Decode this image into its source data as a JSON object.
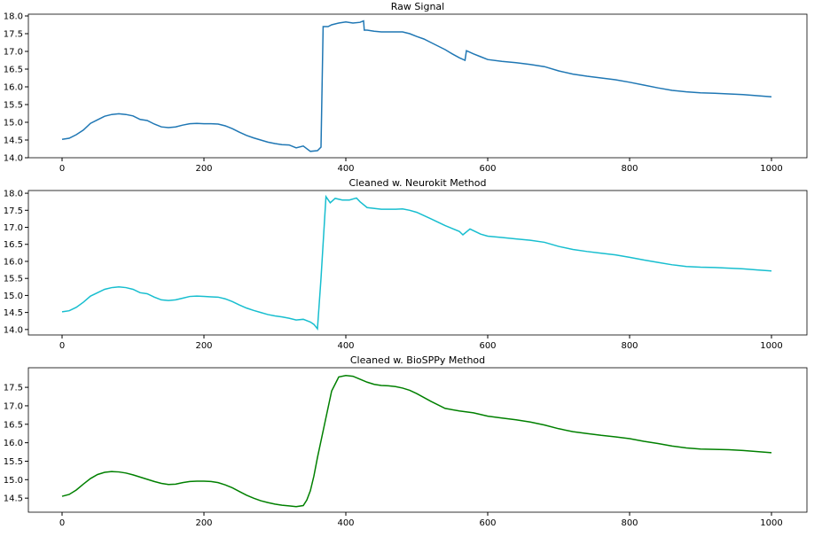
{
  "chart_data": [
    {
      "type": "line",
      "title": "Raw Signal",
      "color": "#1f77b4",
      "x": [
        0,
        10,
        20,
        30,
        40,
        50,
        60,
        70,
        80,
        90,
        100,
        110,
        120,
        130,
        140,
        150,
        160,
        170,
        180,
        190,
        200,
        210,
        220,
        230,
        240,
        250,
        260,
        270,
        280,
        290,
        300,
        310,
        320,
        330,
        340,
        350,
        360,
        365,
        368,
        375,
        380,
        390,
        400,
        410,
        420,
        425,
        426,
        430,
        440,
        450,
        460,
        470,
        480,
        490,
        500,
        510,
        520,
        530,
        540,
        550,
        560,
        568,
        570,
        580,
        590,
        600,
        620,
        640,
        660,
        680,
        700,
        720,
        740,
        760,
        780,
        800,
        820,
        840,
        860,
        880,
        900,
        920,
        940,
        960,
        980,
        1000
      ],
      "values": [
        14.52,
        14.55,
        14.65,
        14.78,
        14.97,
        15.07,
        15.17,
        15.22,
        15.24,
        15.22,
        15.18,
        15.08,
        15.05,
        14.95,
        14.87,
        14.85,
        14.87,
        14.92,
        14.96,
        14.97,
        14.96,
        14.96,
        14.95,
        14.9,
        14.82,
        14.72,
        14.63,
        14.56,
        14.5,
        14.44,
        14.4,
        14.37,
        14.36,
        14.28,
        14.33,
        14.18,
        14.2,
        14.3,
        17.7,
        17.7,
        17.75,
        17.8,
        17.83,
        17.8,
        17.82,
        17.86,
        17.6,
        17.6,
        17.57,
        17.55,
        17.55,
        17.55,
        17.55,
        17.5,
        17.42,
        17.35,
        17.25,
        17.15,
        17.05,
        16.93,
        16.82,
        16.75,
        17.02,
        16.93,
        16.85,
        16.77,
        16.72,
        16.68,
        16.63,
        16.57,
        16.45,
        16.36,
        16.3,
        16.25,
        16.2,
        16.13,
        16.05,
        15.97,
        15.9,
        15.86,
        15.83,
        15.82,
        15.8,
        15.78,
        15.75,
        15.72
      ],
      "xlim": [
        -47.5,
        1050
      ],
      "xticks": [
        0,
        200,
        400,
        600,
        800,
        1000
      ],
      "ylim": [
        14.0,
        18.05
      ],
      "yticks": [
        {
          "value": 14,
          "label": "14.0"
        },
        14.5,
        {
          "value": 15,
          "label": "15.0"
        },
        15.5,
        {
          "value": 16,
          "label": "16.0"
        },
        16.5,
        {
          "value": 17,
          "label": "17.0"
        },
        17.5,
        {
          "value": 18,
          "label": "18.0"
        }
      ]
    },
    {
      "type": "line",
      "title": "Cleaned w. Neurokit Method",
      "color": "#17becf",
      "x": [
        0,
        10,
        20,
        30,
        40,
        50,
        60,
        70,
        80,
        90,
        100,
        110,
        120,
        130,
        140,
        150,
        160,
        170,
        180,
        190,
        200,
        210,
        220,
        230,
        240,
        250,
        260,
        270,
        280,
        290,
        300,
        310,
        320,
        330,
        340,
        350,
        355,
        360,
        365,
        372,
        378,
        385,
        395,
        405,
        415,
        420,
        430,
        450,
        470,
        480,
        490,
        500,
        520,
        540,
        560,
        565,
        575,
        590,
        600,
        620,
        640,
        660,
        680,
        700,
        720,
        740,
        760,
        780,
        800,
        820,
        840,
        860,
        880,
        900,
        920,
        940,
        960,
        980,
        1000
      ],
      "values": [
        14.52,
        14.55,
        14.65,
        14.8,
        14.98,
        15.08,
        15.18,
        15.23,
        15.25,
        15.23,
        15.18,
        15.08,
        15.05,
        14.95,
        14.87,
        14.85,
        14.87,
        14.92,
        14.97,
        14.98,
        14.97,
        14.96,
        14.95,
        14.9,
        14.82,
        14.72,
        14.63,
        14.56,
        14.5,
        14.44,
        14.4,
        14.37,
        14.33,
        14.28,
        14.3,
        14.22,
        14.15,
        14.02,
        15.5,
        17.9,
        17.72,
        17.85,
        17.8,
        17.8,
        17.86,
        17.75,
        17.58,
        17.53,
        17.53,
        17.54,
        17.5,
        17.44,
        17.25,
        17.05,
        16.88,
        16.78,
        16.95,
        16.8,
        16.74,
        16.7,
        16.66,
        16.62,
        16.56,
        16.44,
        16.35,
        16.29,
        16.24,
        16.19,
        16.12,
        16.04,
        15.97,
        15.9,
        15.85,
        15.83,
        15.82,
        15.8,
        15.78,
        15.75,
        15.72
      ],
      "xlim": [
        -47.5,
        1050
      ],
      "xticks": [
        0,
        200,
        400,
        600,
        800,
        1000
      ],
      "ylim": [
        13.84,
        18.08
      ],
      "yticks": [
        {
          "value": 14,
          "label": "14.0"
        },
        14.5,
        {
          "value": 15,
          "label": "15.0"
        },
        15.5,
        {
          "value": 16,
          "label": "16.0"
        },
        16.5,
        {
          "value": 17,
          "label": "17.0"
        },
        17.5,
        {
          "value": 18,
          "label": "18.0"
        }
      ]
    },
    {
      "type": "line",
      "title": "Cleaned w. BioSPPy Method",
      "color": "#008000",
      "x": [
        0,
        10,
        20,
        30,
        40,
        50,
        60,
        70,
        80,
        90,
        100,
        110,
        120,
        130,
        140,
        150,
        160,
        170,
        180,
        190,
        200,
        210,
        220,
        230,
        240,
        250,
        260,
        270,
        280,
        290,
        300,
        310,
        320,
        330,
        340,
        345,
        350,
        355,
        360,
        370,
        380,
        390,
        400,
        410,
        420,
        430,
        440,
        450,
        460,
        470,
        480,
        490,
        500,
        520,
        540,
        560,
        580,
        600,
        620,
        640,
        660,
        680,
        700,
        720,
        740,
        760,
        780,
        800,
        820,
        840,
        860,
        880,
        900,
        920,
        940,
        960,
        980,
        1000
      ],
      "values": [
        14.55,
        14.6,
        14.72,
        14.88,
        15.03,
        15.14,
        15.2,
        15.22,
        15.21,
        15.18,
        15.13,
        15.07,
        15.01,
        14.95,
        14.9,
        14.87,
        14.88,
        14.92,
        14.95,
        14.96,
        14.96,
        14.95,
        14.92,
        14.86,
        14.78,
        14.68,
        14.58,
        14.5,
        14.43,
        14.38,
        14.34,
        14.31,
        14.29,
        14.27,
        14.3,
        14.45,
        14.7,
        15.1,
        15.6,
        16.5,
        17.4,
        17.78,
        17.82,
        17.8,
        17.72,
        17.64,
        17.58,
        17.55,
        17.54,
        17.52,
        17.48,
        17.42,
        17.33,
        17.12,
        16.93,
        16.86,
        16.81,
        16.72,
        16.67,
        16.62,
        16.56,
        16.48,
        16.38,
        16.3,
        16.25,
        16.2,
        16.16,
        16.11,
        16.04,
        15.98,
        15.91,
        15.86,
        15.83,
        15.82,
        15.81,
        15.79,
        15.76,
        15.73
      ],
      "xlim": [
        -47.5,
        1050
      ],
      "xticks": [
        0,
        200,
        400,
        600,
        800,
        1000
      ],
      "ylim": [
        14.12,
        18.03
      ],
      "yticks": [
        14.5,
        {
          "value": 15,
          "label": "15.0"
        },
        15.5,
        {
          "value": 16,
          "label": "16.0"
        },
        16.5,
        {
          "value": 17,
          "label": "17.0"
        },
        17.5
      ]
    }
  ]
}
